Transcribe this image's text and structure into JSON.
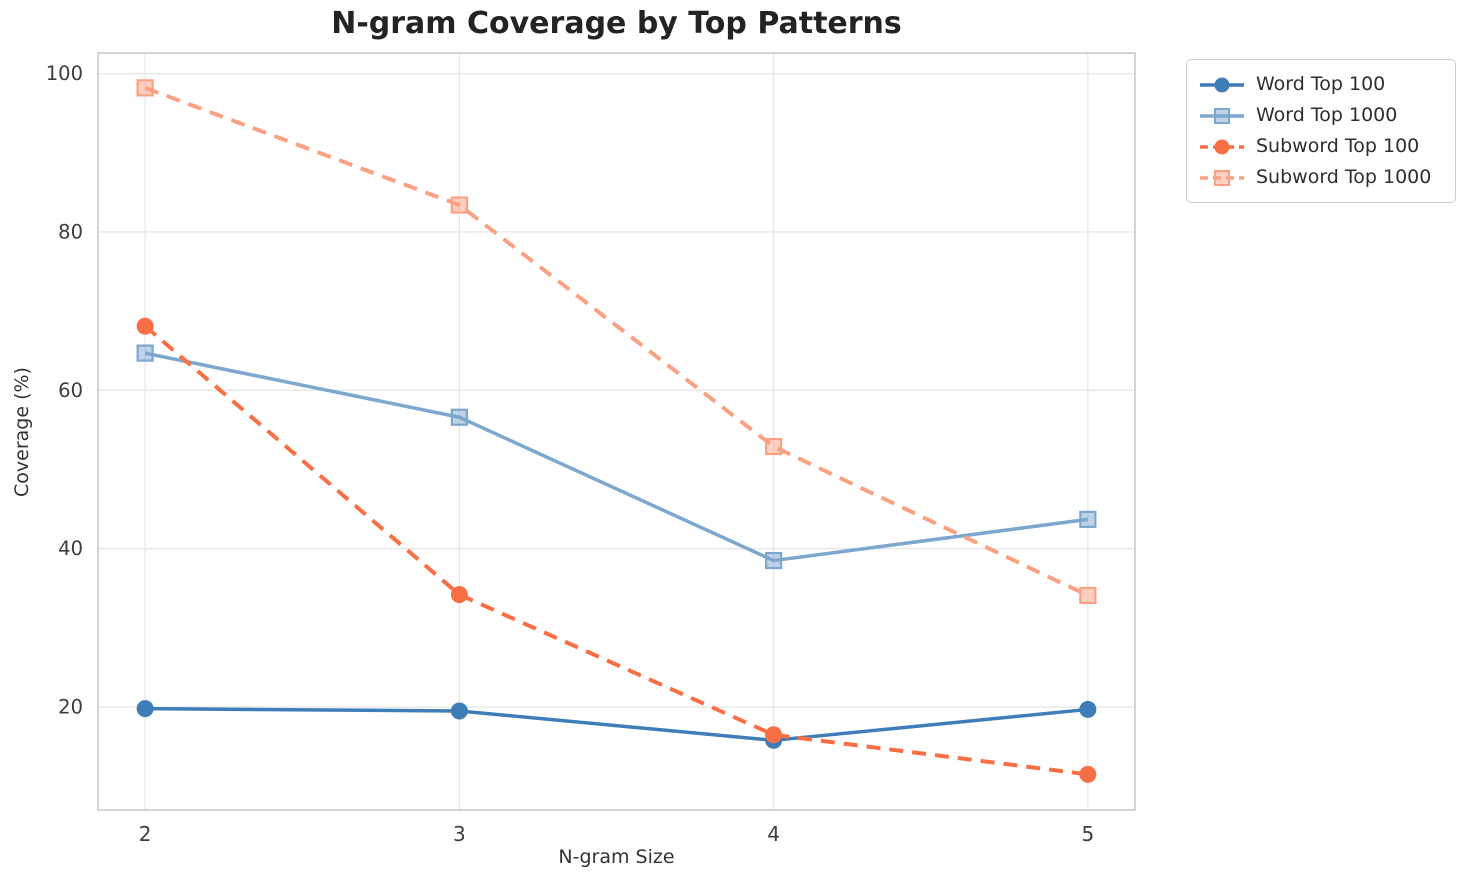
{
  "figure": {
    "title": "N-gram Coverage by Top Patterns",
    "xlabel": "N-gram Size",
    "ylabel": "Coverage (%)"
  },
  "chart_data": {
    "type": "line",
    "title": "N-gram Coverage by Top Patterns",
    "xlabel": "N-gram Size",
    "ylabel": "Coverage (%)",
    "x": [
      2,
      3,
      4,
      5
    ],
    "xtick_labels": [
      "2",
      "3",
      "4",
      "5"
    ],
    "yticks": [
      20,
      40,
      60,
      80,
      100
    ],
    "xlim": [
      1.85,
      5.15
    ],
    "ylim": [
      7.0,
      102.6
    ],
    "grid": true,
    "legend_position": "outside-top-right",
    "colors": {
      "grid": "#e7e7e7",
      "spine": "#c9c9c9",
      "tick_text": "#3d3d3d"
    },
    "series": [
      {
        "name": "Word Top 100",
        "values": [
          19.8,
          19.5,
          15.8,
          19.7
        ],
        "color": "#3e7db7",
        "line_style": "solid",
        "marker": "circle"
      },
      {
        "name": "Word Top 1000",
        "values": [
          64.7,
          56.6,
          38.5,
          43.7
        ],
        "color": "#7ea7cf",
        "line_style": "solid",
        "marker": "square"
      },
      {
        "name": "Subword Top 100",
        "values": [
          68.1,
          34.2,
          16.5,
          11.5
        ],
        "color": "#f96f45",
        "line_style": "dashed",
        "marker": "circle"
      },
      {
        "name": "Subword Top 1000",
        "values": [
          98.2,
          83.4,
          52.9,
          34.1
        ],
        "color": "#fba183",
        "line_style": "dashed",
        "marker": "square"
      }
    ]
  }
}
